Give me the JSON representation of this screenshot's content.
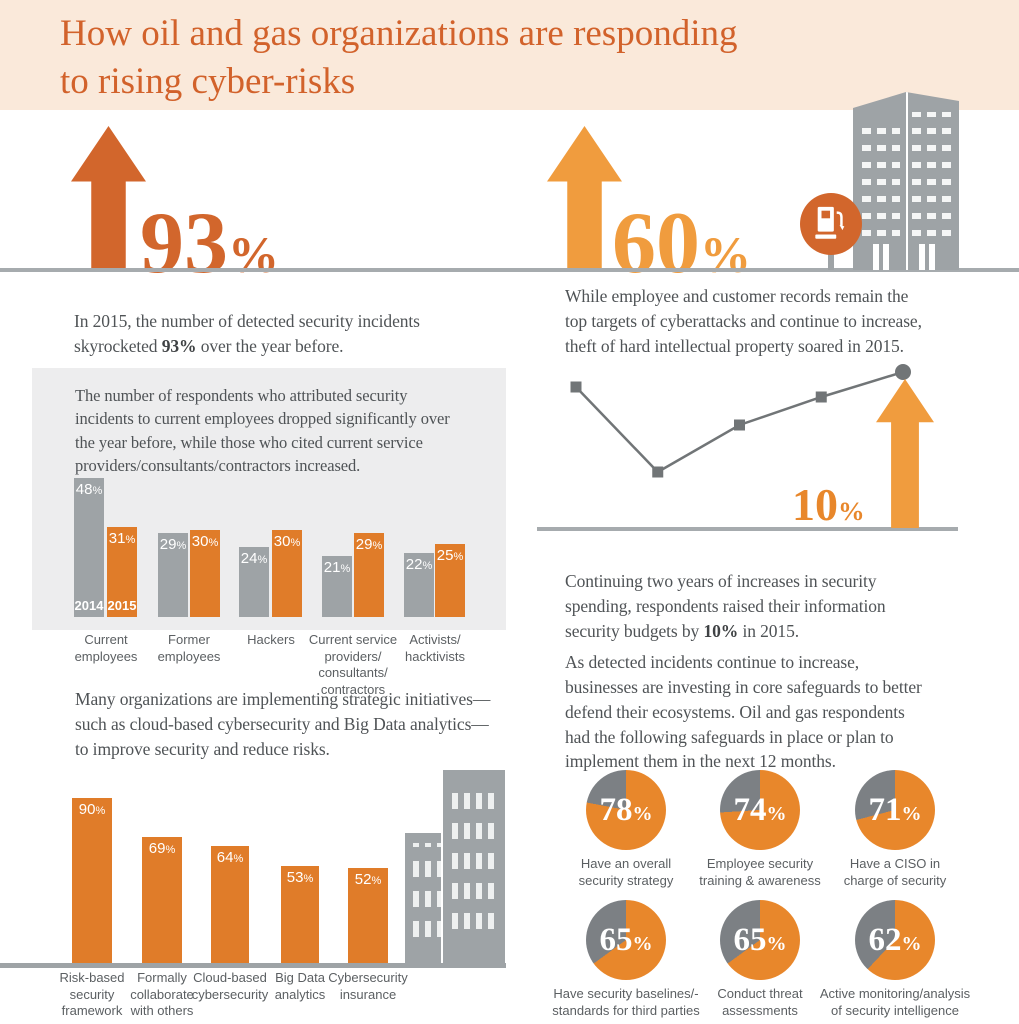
{
  "header": {
    "title": "How oil and gas organizations are responding\nto rising cyber-risks"
  },
  "colors": {
    "header_bg": "#fae9da",
    "title_orange": "#d2622b",
    "dark_orange": "#d2662c",
    "light_orange": "#f09c3e",
    "bar_orange": "#e07c29",
    "pie_orange": "#e8872b",
    "pie_gray": "#7c8084",
    "bar_gray": "#9ea3a6",
    "trend_gray": "#717577",
    "rule_gray": "#a6abae",
    "text_gray": "#4f5356",
    "label_gray": "#5b5f62",
    "panel_bg": "#ededee"
  },
  "stats": {
    "incidents": {
      "value": "93",
      "suffix": "%",
      "caption_pre": "In 2015, the number of detected security incidents\nskyrocketed ",
      "caption_bold": "93%",
      "caption_post": " over the year before."
    },
    "ip_theft": {
      "value": "60",
      "suffix": "%",
      "caption": "While employee and customer records remain the\ntop targets of cyberattacks and continue to increase,\ntheft of hard intellectual property soared in 2015."
    },
    "budget": {
      "value": "10",
      "suffix": "%",
      "caption_pre": "Continuing two years of increases in security\nspending, respondents raised their information\nsecurity budgets by ",
      "caption_bold": "10%",
      "caption_post": " in 2015."
    }
  },
  "sections": {
    "attribution_intro": "The number of respondents who attributed security\nincidents to current employees dropped significantly over\nthe year before, while those who cited current service\nproviders/consultants/contractors increased.",
    "initiatives_intro": "Many organizations are implementing strategic initiatives—\nsuch as cloud-based cybersecurity and Big Data analytics—\nto improve security and reduce risks.",
    "safeguards_intro": "As detected incidents continue to increase,\nbusinesses are investing in core safeguards to better\ndefend their ecosystems. Oil and gas respondents\nhad the following safeguards in place or plan to\nimplement them in the next 12 months."
  },
  "chart_data": [
    {
      "type": "bar",
      "name": "attribution-of-security-incidents",
      "categories": [
        "Current\nemployees",
        "Former\nemployees",
        "Hackers",
        "Current service\nproviders/\nconsultants/\ncontractors",
        "Activists/\nhacktivists"
      ],
      "series": [
        {
          "name": "2014",
          "values": [
            48,
            29,
            24,
            21,
            22
          ]
        },
        {
          "name": "2015",
          "values": [
            31,
            30,
            30,
            29,
            25
          ]
        }
      ],
      "value_suffix": "%",
      "legend_position": "inside-first-bar-pair"
    },
    {
      "type": "line",
      "name": "security-spending-trend",
      "values_estimated": [
        84,
        34,
        62,
        78,
        93
      ],
      "annotation": "10%",
      "grid": false,
      "axes_labeled": false
    },
    {
      "type": "bar",
      "name": "strategic-initiatives",
      "categories": [
        "Risk-based\nsecurity\nframework",
        "Formally\ncollaborate\nwith others",
        "Cloud-based\ncybersecurity",
        "Big Data\nanalytics",
        "Cybersecurity\ninsurance"
      ],
      "values": [
        90,
        69,
        64,
        53,
        52
      ],
      "value_suffix": "%"
    },
    {
      "type": "pie",
      "name": "core-safeguards",
      "value_suffix": "%",
      "items": [
        {
          "label": "Have an overall\nsecurity strategy",
          "value": 78
        },
        {
          "label": "Employee security\ntraining & awareness",
          "value": 74
        },
        {
          "label": "Have a CISO in\ncharge of security",
          "value": 71
        },
        {
          "label": "Have security baselines/-\nstandards for third parties",
          "value": 65
        },
        {
          "label": "Conduct threat\nassessments",
          "value": 65
        },
        {
          "label": "Active monitoring/analysis\nof security intelligence",
          "value": 62
        }
      ]
    }
  ]
}
